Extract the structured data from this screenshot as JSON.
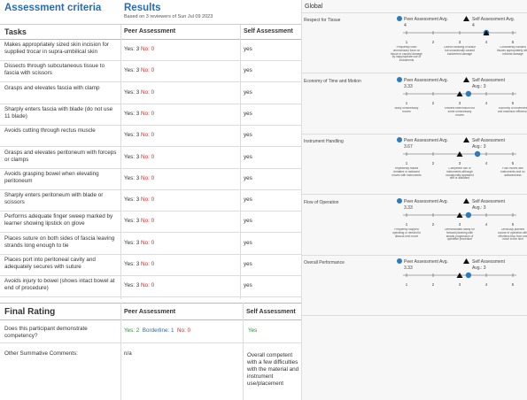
{
  "left": {
    "criteria_title": "Assessment criteria",
    "results_title": "Results",
    "results_sub": "Based on 3 reviewers of Sun Jul 09 2023",
    "col_tasks": "Tasks",
    "col_peer": "Peer Assessment",
    "col_self": "Self Assessment",
    "rows": [
      {
        "task": "Makes appropriately sized skin incision for supplied trocar in supra-umbilical skin",
        "yes": "Yes: 3",
        "no": "No: 0",
        "self": "yes"
      },
      {
        "task": "Dissects through subcutaneous tissue to fascia with scissors",
        "yes": "Yes: 3",
        "no": "No: 0",
        "self": "yes"
      },
      {
        "task": "Grasps and elevates fascia with clamp",
        "yes": "Yes: 3",
        "no": "No: 0",
        "self": "yes"
      },
      {
        "task": "Sharply enters fascia with blade (do not use 11 blade)",
        "yes": "Yes: 3",
        "no": "No: 0",
        "self": "yes"
      },
      {
        "task": "Avoids cutting through rectus muscle",
        "yes": "Yes: 3",
        "no": "No: 0",
        "self": "yes"
      },
      {
        "task": "Grasps and elevates peritoneum with forceps or clamps",
        "yes": "Yes: 3",
        "no": "No: 0",
        "self": "yes"
      },
      {
        "task": "Avoids grasping bowel when elevating peritoneum",
        "yes": "Yes: 3",
        "no": "No: 0",
        "self": "yes"
      },
      {
        "task": "Sharply enters peritoneum with blade or scissors",
        "yes": "Yes: 3",
        "no": "No: 0",
        "self": "yes"
      },
      {
        "task": "Performs adequate finger sweep marked by learner showing lipstick on glove",
        "yes": "Yes: 3",
        "no": "No: 0",
        "self": "yes"
      },
      {
        "task": "Places suture on both sides of fascia leaving strands long enough to tie",
        "yes": "Yes: 3",
        "no": "No: 0",
        "self": "yes"
      },
      {
        "task": "Places port into peritoneal cavity and adequately secures with suture",
        "yes": "Yes: 3",
        "no": "No: 0",
        "self": "yes"
      },
      {
        "task": "Avoids injury to bowel (shows intact bowel at end of procedure)",
        "yes": "Yes: 3",
        "no": "No: 0",
        "self": "yes"
      }
    ],
    "final": {
      "title": "Final Rating",
      "col_peer": "Peer Assessment",
      "col_self": "Self Assessment",
      "question": "Does this participant demonstrate competency?",
      "peer_yes": "Yes: 2",
      "peer_border": "Borderline: 1",
      "peer_no": "No: 0",
      "self_answer": "Yes",
      "comments_label": "Other Summative Comments:",
      "peer_comments": "n/a",
      "self_comments": "Overall competent with a few difficulties with the material and instrument use/placement"
    }
  },
  "right": {
    "title": "Global",
    "colors": {
      "peer": "#2b7bbf",
      "self": "#111111"
    },
    "dims": [
      {
        "name": "Respect for Tissue",
        "peer_label": "Peer Assessment Avg.",
        "peer_avg": 4,
        "peer_avg_text": "4",
        "self_label": "Self Assessment Avg.",
        "self_avg": 4,
        "self_avg_text": "4",
        "anchors": [
          "Frequently used unnecessary force on tissue or caused damage by inappropriate use of instruments",
          "Careful handling of tissue but occasionally caused inadvertent damage",
          "Consistently handled tissues appropriately with minimal damage"
        ]
      },
      {
        "name": "Economy of Time and Motion",
        "peer_label": "Peer Assessment Avg.",
        "peer_avg": 3.33,
        "peer_avg_text": "3.33",
        "self_label": "Self Assessment",
        "self_avg": 3,
        "self_avg_text": "Avg.: 3",
        "anchors": [
          "Many unnecessary moves",
          "Efficient time/motion but some unnecessary moves",
          "Economy of movement and maximum efficiency"
        ]
      },
      {
        "name": "Instrument Handling",
        "peer_label": "Peer Assessment Avg.",
        "peer_avg": 3.67,
        "peer_avg_text": "3.67",
        "self_label": "Self Assessment",
        "self_avg": 3,
        "self_avg_text": "Avg.: 3",
        "anchors": [
          "Repeatedly makes tentative or awkward moves with instruments",
          "Competent use of instruments although occasionally appeared stiff or awkward",
          "Fluid moves with instruments and no awkwardness"
        ]
      },
      {
        "name": "Flow of Operation",
        "peer_label": "Peer Assessment Avg.",
        "peer_avg": 3.33,
        "peer_avg_text": "3.33",
        "self_label": "Self Assessment",
        "self_avg": 3,
        "self_avg_text": "Avg.: 3",
        "anchors": [
          "Frequently stopped operating or needed to discuss next move",
          "Demonstrated ability for forward planning with steady progression of operative procedure",
          "Obviously planned course of operation with effortless flow from one move to the next"
        ]
      },
      {
        "name": "Overall Performance",
        "peer_label": "Peer Assessment Avg.",
        "peer_avg": 3.33,
        "peer_avg_text": "3.33",
        "self_label": "Self Assessment",
        "self_avg": 3,
        "self_avg_text": "Avg.: 3",
        "anchors": [
          "",
          "",
          ""
        ]
      }
    ],
    "ticks": [
      "1",
      "2",
      "3",
      "4",
      "5"
    ]
  }
}
